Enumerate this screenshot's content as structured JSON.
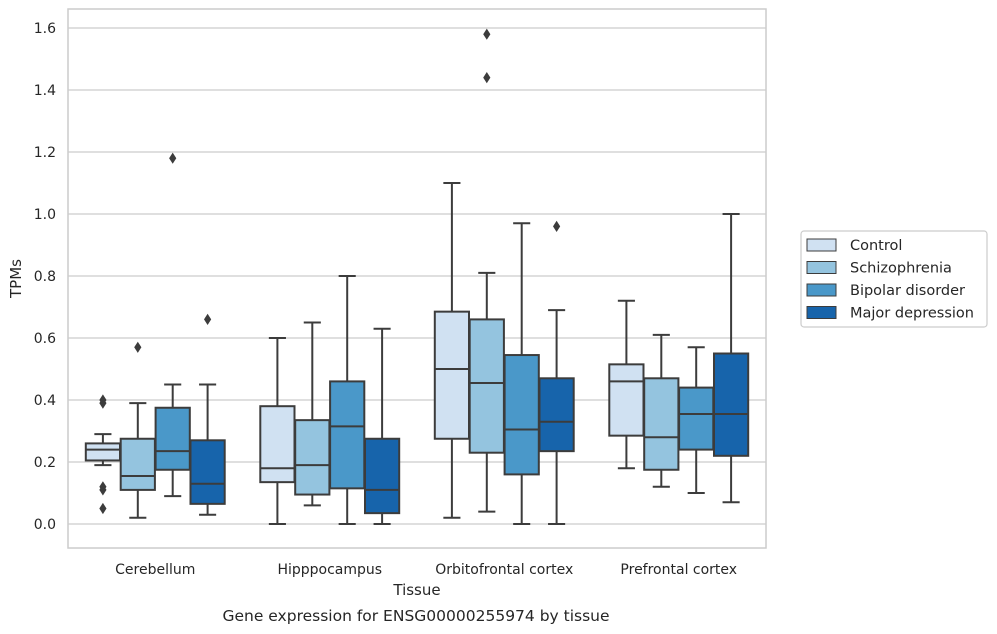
{
  "chart_data": {
    "type": "box",
    "title": "",
    "caption": "Gene expression for ENSG00000255974 by tissue",
    "xlabel": "Tissue",
    "ylabel": "TPMs",
    "ylim": [
      -0.08,
      1.66
    ],
    "yticks": [
      0.0,
      0.2,
      0.4,
      0.6,
      0.8,
      1.0,
      1.2,
      1.4,
      1.6
    ],
    "grid": true,
    "legend_position": "right",
    "categories": [
      "Cerebellum",
      "Hipppocampus",
      "Orbitofrontal cortex",
      "Prefrontal cortex"
    ],
    "series": [
      {
        "name": "Control",
        "color": "#d0e1f2",
        "boxes": [
          {
            "whisker_low": 0.19,
            "q1": 0.205,
            "median": 0.24,
            "q3": 0.26,
            "whisker_high": 0.29,
            "outliers": [
              0.4,
              0.39,
              0.12,
              0.11,
              0.05
            ]
          },
          {
            "whisker_low": 0.0,
            "q1": 0.135,
            "median": 0.18,
            "q3": 0.38,
            "whisker_high": 0.6,
            "outliers": []
          },
          {
            "whisker_low": 0.02,
            "q1": 0.275,
            "median": 0.5,
            "q3": 0.685,
            "whisker_high": 1.1,
            "outliers": []
          },
          {
            "whisker_low": 0.18,
            "q1": 0.285,
            "median": 0.46,
            "q3": 0.515,
            "whisker_high": 0.72,
            "outliers": []
          }
        ]
      },
      {
        "name": "Schizophrenia",
        "color": "#94c4df",
        "boxes": [
          {
            "whisker_low": 0.02,
            "q1": 0.11,
            "median": 0.155,
            "q3": 0.275,
            "whisker_high": 0.39,
            "outliers": [
              0.57
            ]
          },
          {
            "whisker_low": 0.06,
            "q1": 0.095,
            "median": 0.19,
            "q3": 0.335,
            "whisker_high": 0.65,
            "outliers": []
          },
          {
            "whisker_low": 0.04,
            "q1": 0.23,
            "median": 0.455,
            "q3": 0.66,
            "whisker_high": 0.81,
            "outliers": [
              1.58,
              1.44
            ]
          },
          {
            "whisker_low": 0.12,
            "q1": 0.175,
            "median": 0.28,
            "q3": 0.47,
            "whisker_high": 0.61,
            "outliers": []
          }
        ]
      },
      {
        "name": "Bipolar disorder",
        "color": "#4a98c9",
        "boxes": [
          {
            "whisker_low": 0.09,
            "q1": 0.175,
            "median": 0.235,
            "q3": 0.375,
            "whisker_high": 0.45,
            "outliers": [
              1.18
            ]
          },
          {
            "whisker_low": 0.0,
            "q1": 0.115,
            "median": 0.315,
            "q3": 0.46,
            "whisker_high": 0.8,
            "outliers": []
          },
          {
            "whisker_low": 0.0,
            "q1": 0.16,
            "median": 0.305,
            "q3": 0.545,
            "whisker_high": 0.97,
            "outliers": []
          },
          {
            "whisker_low": 0.1,
            "q1": 0.24,
            "median": 0.355,
            "q3": 0.44,
            "whisker_high": 0.57,
            "outliers": []
          }
        ]
      },
      {
        "name": "Major depression",
        "color": "#1764ab",
        "boxes": [
          {
            "whisker_low": 0.03,
            "q1": 0.065,
            "median": 0.13,
            "q3": 0.27,
            "whisker_high": 0.45,
            "outliers": [
              0.66
            ]
          },
          {
            "whisker_low": 0.0,
            "q1": 0.035,
            "median": 0.11,
            "q3": 0.275,
            "whisker_high": 0.63,
            "outliers": []
          },
          {
            "whisker_low": 0.0,
            "q1": 0.235,
            "median": 0.33,
            "q3": 0.47,
            "whisker_high": 0.69,
            "outliers": [
              0.96
            ]
          },
          {
            "whisker_low": 0.07,
            "q1": 0.22,
            "median": 0.355,
            "q3": 0.55,
            "whisker_high": 1.0,
            "outliers": []
          }
        ]
      }
    ]
  }
}
